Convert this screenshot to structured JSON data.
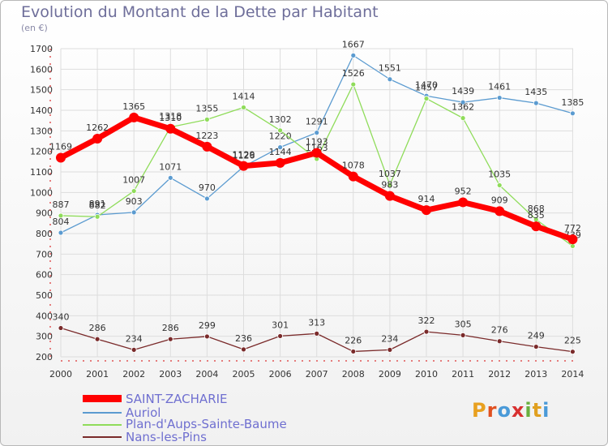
{
  "chart_data": {
    "type": "line",
    "title": "Evolution du Montant de la Dette par Habitant",
    "unit_label": "(en €)",
    "categories": [
      "2000",
      "2001",
      "2002",
      "2003",
      "2004",
      "2005",
      "2006",
      "2007",
      "2008",
      "2009",
      "2010",
      "2011",
      "2012",
      "2013",
      "2014"
    ],
    "ylim": [
      200,
      1700
    ],
    "yticks": [
      200,
      300,
      400,
      500,
      600,
      700,
      800,
      900,
      1000,
      1100,
      1200,
      1300,
      1400,
      1500,
      1600,
      1700
    ],
    "grid": true,
    "series": [
      {
        "name": "Nans-les-Pins",
        "color": "#7a2a2a",
        "values": [
          340,
          286,
          234,
          286,
          299,
          236,
          301,
          313,
          226,
          234,
          322,
          305,
          276,
          249,
          225
        ]
      },
      {
        "name": "Auriol",
        "color": "#5b9bd0",
        "values": [
          804,
          891,
          903,
          1071,
          970,
          1126,
          1220,
          1291,
          1667,
          1551,
          1470,
          1439,
          1461,
          1435,
          1385
        ]
      },
      {
        "name": "Plan-d'Aups-Sainte-Baume",
        "color": "#8fdc5a",
        "values": [
          887,
          882,
          1007,
          1318,
          1355,
          1414,
          1302,
          1163,
          1526,
          1037,
          1457,
          1362,
          1035,
          868,
          739
        ]
      },
      {
        "name": "SAINT-ZACHARIE",
        "color": "#ff0000",
        "values": [
          1169,
          1262,
          1365,
          1310,
          1223,
          1129,
          1144,
          1193,
          1078,
          983,
          914,
          952,
          909,
          835,
          772
        ]
      }
    ]
  },
  "legend": [
    {
      "name": "SAINT-ZACHARIE",
      "color": "#ff0000"
    },
    {
      "name": "Auriol",
      "color": "#5b9bd0"
    },
    {
      "name": "Plan-d'Aups-Sainte-Baume",
      "color": "#8fdc5a"
    },
    {
      "name": "Nans-les-Pins",
      "color": "#7a2a2a"
    }
  ],
  "logo": {
    "text": "Proxiti",
    "colors": [
      "#e8a020",
      "#e05020",
      "#4a9ad8",
      "#d83030",
      "#6ab040",
      "#e0a020",
      "#4a9ad8"
    ]
  }
}
